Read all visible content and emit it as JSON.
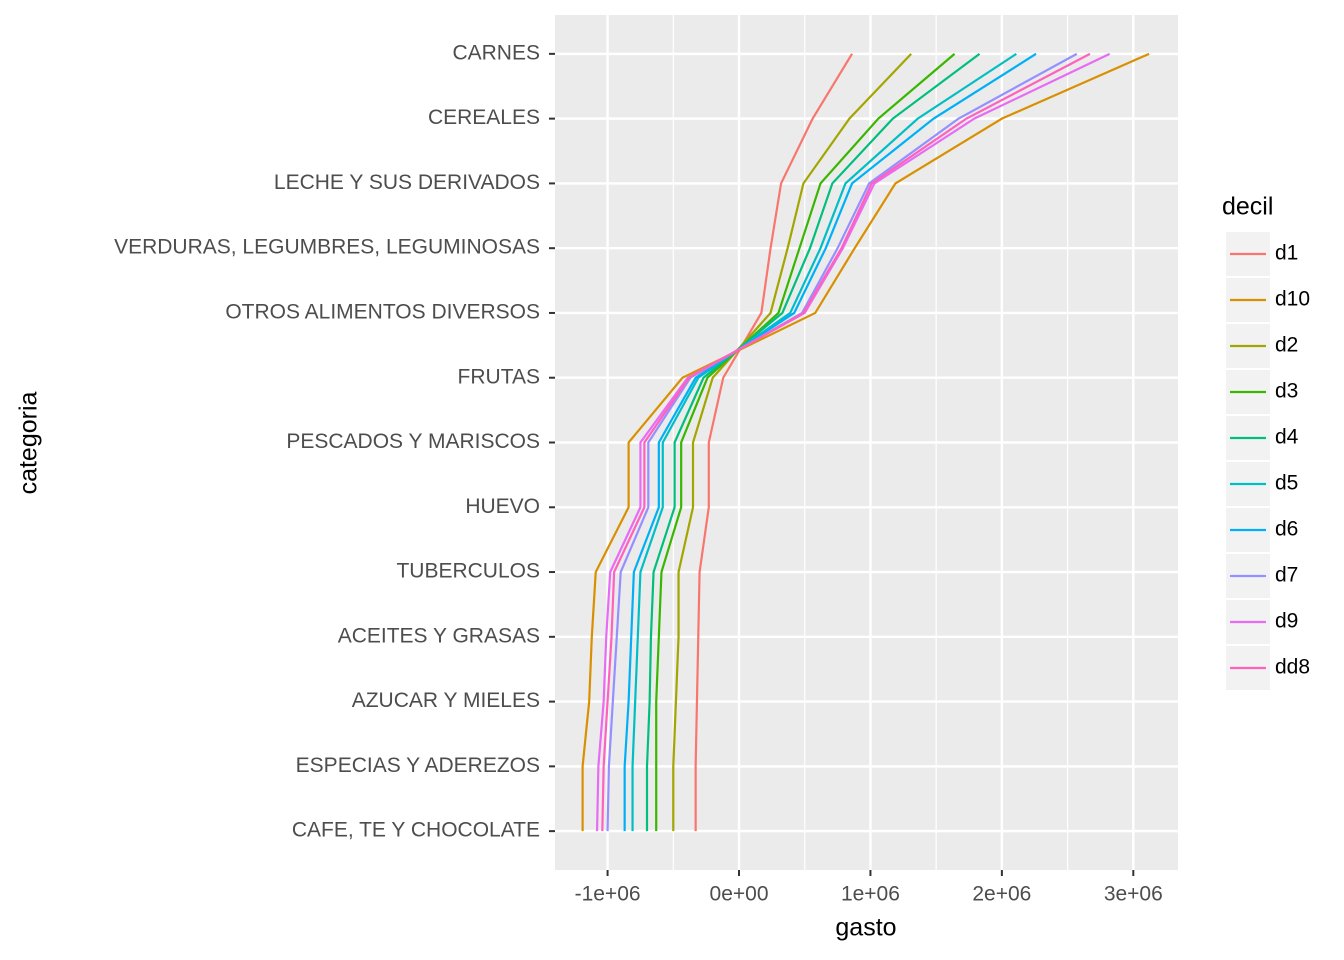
{
  "chart_data": {
    "type": "line",
    "x_label": "gasto",
    "y_label": "categoria",
    "legend_title": "decil",
    "categories": [
      "CARNES",
      "CEREALES",
      "LECHE Y SUS DERIVADOS",
      "VERDURAS, LEGUMBRES, LEGUMINOSAS",
      "OTROS ALIMENTOS DIVERSOS",
      "FRUTAS",
      "PESCADOS Y MARISCOS",
      "HUEVO",
      "TUBERCULOS",
      "ACEITES Y GRASAS",
      "AZUCAR Y MIELES",
      "ESPECIAS Y ADEREZOS",
      "CAFE, TE Y CHOCOLATE"
    ],
    "xlim": [
      -1400000,
      3340000
    ],
    "xticks": [
      {
        "value": -1000000,
        "label": "-1e+06"
      },
      {
        "value": 0,
        "label": "0e+00"
      },
      {
        "value": 1000000,
        "label": "1e+06"
      },
      {
        "value": 2000000,
        "label": "2e+06"
      },
      {
        "value": 3000000,
        "label": "3e+06"
      }
    ],
    "grid": true,
    "legend_position": "right",
    "series": [
      {
        "name": "d1",
        "color": "#F8766D",
        "values": [
          860000,
          560000,
          320000,
          240000,
          170000,
          -120000,
          -230000,
          -230000,
          -300000,
          -310000,
          -320000,
          -330000,
          -330000
        ]
      },
      {
        "name": "d10",
        "color": "#D89000",
        "values": [
          3120000,
          2000000,
          1190000,
          880000,
          580000,
          -430000,
          -840000,
          -840000,
          -1090000,
          -1120000,
          -1140000,
          -1190000,
          -1190000
        ]
      },
      {
        "name": "d2",
        "color": "#A3A500",
        "values": [
          1310000,
          840000,
          490000,
          370000,
          240000,
          -200000,
          -350000,
          -350000,
          -460000,
          -460000,
          -480000,
          -500000,
          -500000
        ]
      },
      {
        "name": "d3",
        "color": "#39B600",
        "values": [
          1640000,
          1060000,
          620000,
          460000,
          300000,
          -240000,
          -440000,
          -440000,
          -590000,
          -610000,
          -630000,
          -630000,
          -630000
        ]
      },
      {
        "name": "d4",
        "color": "#00BF7D",
        "values": [
          1830000,
          1170000,
          710000,
          540000,
          330000,
          -270000,
          -490000,
          -490000,
          -650000,
          -670000,
          -680000,
          -700000,
          -700000
        ]
      },
      {
        "name": "d5",
        "color": "#00BFC4",
        "values": [
          2110000,
          1360000,
          810000,
          620000,
          390000,
          -310000,
          -580000,
          -580000,
          -750000,
          -770000,
          -790000,
          -810000,
          -810000
        ]
      },
      {
        "name": "d6",
        "color": "#00B0F6",
        "values": [
          2260000,
          1480000,
          860000,
          660000,
          420000,
          -330000,
          -610000,
          -610000,
          -800000,
          -820000,
          -840000,
          -870000,
          -870000
        ]
      },
      {
        "name": "d7",
        "color": "#9590FF",
        "values": [
          2570000,
          1670000,
          990000,
          750000,
          480000,
          -370000,
          -690000,
          -690000,
          -900000,
          -930000,
          -960000,
          -990000,
          -1000000
        ]
      },
      {
        "name": "d9",
        "color": "#E76BF3",
        "values": [
          2820000,
          1790000,
          1030000,
          790000,
          500000,
          -390000,
          -750000,
          -750000,
          -980000,
          -1010000,
          -1030000,
          -1070000,
          -1080000
        ]
      },
      {
        "name": "dd8",
        "color": "#FF62BC",
        "values": [
          2670000,
          1730000,
          1010000,
          780000,
          490000,
          -380000,
          -720000,
          -720000,
          -950000,
          -970000,
          -1000000,
          -1030000,
          -1040000
        ]
      }
    ]
  }
}
